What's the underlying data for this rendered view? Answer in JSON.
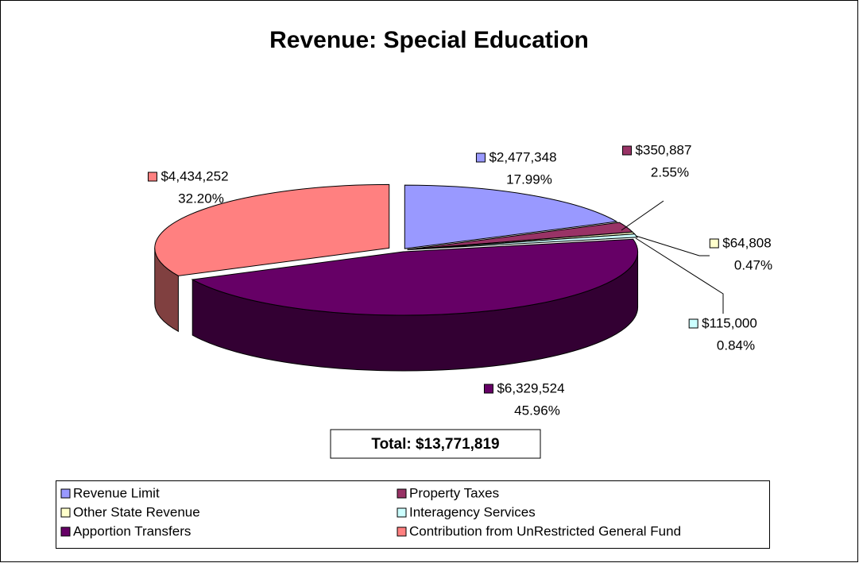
{
  "chart_data": {
    "type": "pie",
    "title": "Revenue:  Special Education",
    "categories": [
      "Revenue Limit",
      "Property Taxes",
      "Other State Revenue",
      "Interagency Services",
      "Apportion Transfers",
      "Contribution from UnRestricted General Fund"
    ],
    "values": [
      2477348,
      350887,
      64808,
      115000,
      6329524,
      4434252
    ],
    "value_labels": [
      "$2,477,348",
      "$350,887",
      "$64,808",
      "$115,000",
      "$6,329,524",
      "$4,434,252"
    ],
    "percents": [
      17.99,
      2.55,
      0.47,
      0.84,
      45.96,
      32.2
    ],
    "percent_labels": [
      "17.99%",
      "2.55%",
      "0.47%",
      "0.84%",
      "45.96%",
      "32.20%"
    ],
    "colors": [
      "#9999ff",
      "#993366",
      "#ffffcc",
      "#ccffff",
      "#660066",
      "#ff8080"
    ],
    "annotation": "Total:  $13,771,819",
    "legend": "bottom"
  }
}
